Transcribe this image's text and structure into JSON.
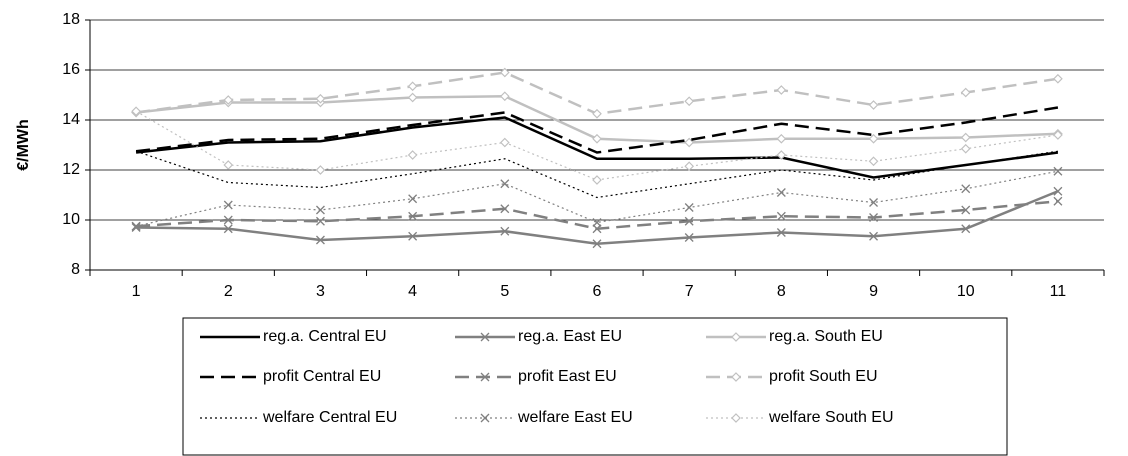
{
  "chart_data": {
    "type": "line",
    "y_label": "€/MWh",
    "categories": [
      "1",
      "2",
      "3",
      "4",
      "5",
      "6",
      "7",
      "8",
      "9",
      "10",
      "11"
    ],
    "ylim": [
      8,
      18
    ],
    "yticks": [
      8,
      10,
      12,
      14,
      16,
      18
    ],
    "grid": true,
    "legend": "bottom",
    "series": [
      {
        "name": "reg.a. Central EU",
        "color": "#000000",
        "dash": "solid",
        "marker": "none",
        "values": [
          12.7,
          13.1,
          13.15,
          13.7,
          14.1,
          12.45,
          12.45,
          12.5,
          11.7,
          12.2,
          12.7
        ]
      },
      {
        "name": "reg.a. East EU",
        "color": "#808080",
        "dash": "solid",
        "marker": "x",
        "values": [
          9.7,
          9.65,
          9.2,
          9.35,
          9.55,
          9.05,
          9.3,
          9.5,
          9.35,
          9.65,
          11.15
        ]
      },
      {
        "name": "reg.a. South EU",
        "color": "#c0c0c0",
        "dash": "solid",
        "marker": "diamond",
        "values": [
          14.3,
          14.7,
          14.7,
          14.9,
          14.95,
          13.25,
          13.1,
          13.25,
          13.25,
          13.3,
          13.45
        ]
      },
      {
        "name": "profit Central EU",
        "color": "#000000",
        "dash": "dashed",
        "marker": "none",
        "values": [
          12.75,
          13.2,
          13.25,
          13.8,
          14.3,
          12.7,
          13.2,
          13.85,
          13.4,
          13.9,
          14.5
        ]
      },
      {
        "name": "profit East EU",
        "color": "#808080",
        "dash": "dashed",
        "marker": "x",
        "values": [
          9.75,
          10.0,
          9.95,
          10.15,
          10.45,
          9.65,
          9.95,
          10.15,
          10.1,
          10.4,
          10.75
        ]
      },
      {
        "name": "profit South EU",
        "color": "#c0c0c0",
        "dash": "dashed",
        "marker": "diamond",
        "values": [
          14.3,
          14.8,
          14.85,
          15.35,
          15.9,
          14.25,
          14.75,
          15.2,
          14.6,
          15.1,
          15.65
        ]
      },
      {
        "name": "welfare Central EU",
        "color": "#000000",
        "dash": "dotted",
        "marker": "none",
        "values": [
          12.75,
          11.5,
          11.3,
          11.85,
          12.45,
          10.9,
          11.45,
          12.0,
          11.6,
          12.2,
          12.75
        ]
      },
      {
        "name": "welfare East EU",
        "color": "#808080",
        "dash": "dotted",
        "marker": "x",
        "values": [
          9.75,
          10.6,
          10.4,
          10.85,
          11.45,
          9.9,
          10.5,
          11.1,
          10.7,
          11.25,
          11.95
        ]
      },
      {
        "name": "welfare South EU",
        "color": "#c0c0c0",
        "dash": "dotted",
        "marker": "diamond",
        "values": [
          14.35,
          12.2,
          12.0,
          12.6,
          13.1,
          11.6,
          12.15,
          12.6,
          12.35,
          12.85,
          13.4
        ]
      }
    ]
  }
}
